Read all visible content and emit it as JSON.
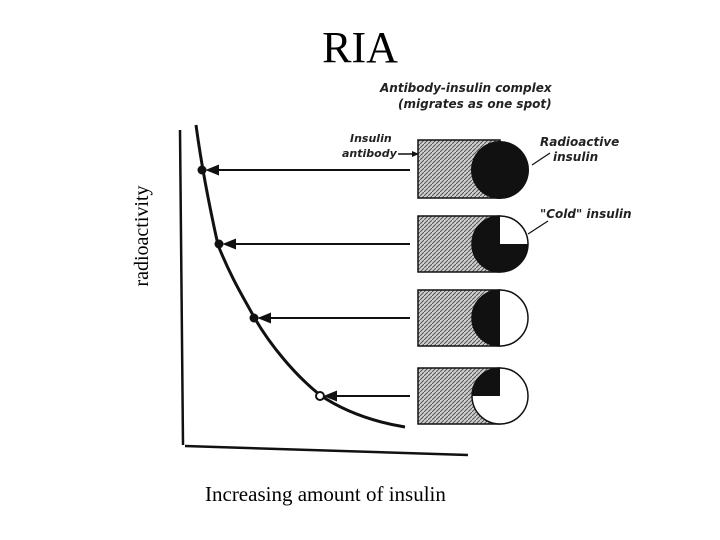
{
  "title": "RIA",
  "y_axis_label": "radioactivity",
  "x_axis_label": "Increasing amount of insulin",
  "annotations": {
    "complex_line1": "Antibody-insulin complex",
    "complex_line2": "(migrates as one spot)",
    "antibody_line1": "Insulin",
    "antibody_line2": "antibody",
    "radioactive_line1": "Radioactive",
    "radioactive_line2": "insulin",
    "cold": "\"Cold\" insulin"
  },
  "colors": {
    "ink": "#111111",
    "hatch": "#777777",
    "background": "#ffffff"
  }
}
